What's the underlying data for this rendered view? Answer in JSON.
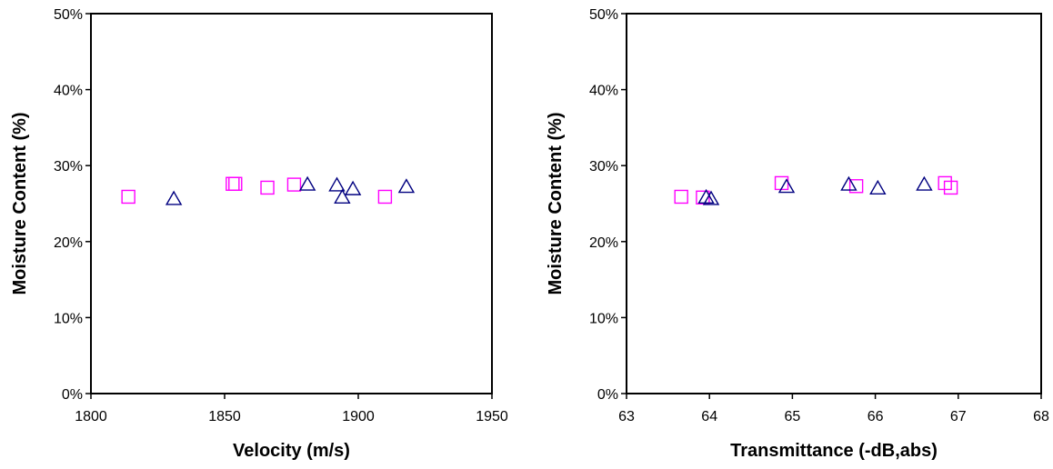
{
  "chart_data": [
    {
      "type": "scatter",
      "title": "",
      "xlabel": "Velocity (m/s)",
      "ylabel": "Moisture Content (%)",
      "xlim": [
        1800,
        1950
      ],
      "ylim": [
        0,
        0.5
      ],
      "x_ticks": [
        "1800",
        "1850",
        "1900",
        "1950"
      ],
      "x_tick_values": [
        1800,
        1850,
        1900,
        1950
      ],
      "y_ticks": [
        "0%",
        "10%",
        "20%",
        "30%",
        "40%",
        "50%"
      ],
      "y_tick_values": [
        0,
        0.1,
        0.2,
        0.3,
        0.4,
        0.5
      ],
      "grid": false,
      "legend": "none",
      "series": [
        {
          "marker": "square",
          "color": "#ff00ff",
          "points": [
            {
              "x": 1814,
              "y": 0.259
            },
            {
              "x": 1853,
              "y": 0.276
            },
            {
              "x": 1854,
              "y": 0.276
            },
            {
              "x": 1866,
              "y": 0.271
            },
            {
              "x": 1876,
              "y": 0.275
            },
            {
              "x": 1910,
              "y": 0.259
            }
          ]
        },
        {
          "marker": "triangle",
          "color": "#000080",
          "points": [
            {
              "x": 1831,
              "y": 0.256
            },
            {
              "x": 1881,
              "y": 0.275
            },
            {
              "x": 1892,
              "y": 0.274
            },
            {
              "x": 1894,
              "y": 0.258
            },
            {
              "x": 1898,
              "y": 0.269
            },
            {
              "x": 1918,
              "y": 0.272
            }
          ]
        }
      ]
    },
    {
      "type": "scatter",
      "title": "",
      "xlabel": "Transmittance (-dB,abs)",
      "ylabel": "Moisture Content (%)",
      "xlim": [
        63,
        68
      ],
      "ylim": [
        0,
        0.5
      ],
      "x_ticks": [
        "63",
        "64",
        "65",
        "66",
        "67",
        "68"
      ],
      "x_tick_values": [
        63,
        64,
        65,
        66,
        67,
        68
      ],
      "y_ticks": [
        "0%",
        "10%",
        "20%",
        "30%",
        "40%",
        "50%"
      ],
      "y_tick_values": [
        0,
        0.1,
        0.2,
        0.3,
        0.4,
        0.5
      ],
      "grid": false,
      "legend": "none",
      "series": [
        {
          "marker": "square",
          "color": "#ff00ff",
          "points": [
            {
              "x": 63.66,
              "y": 0.259
            },
            {
              "x": 63.92,
              "y": 0.258
            },
            {
              "x": 64.87,
              "y": 0.277
            },
            {
              "x": 65.77,
              "y": 0.273
            },
            {
              "x": 66.84,
              "y": 0.277
            },
            {
              "x": 66.91,
              "y": 0.271
            }
          ]
        },
        {
          "marker": "triangle",
          "color": "#000080",
          "points": [
            {
              "x": 63.96,
              "y": 0.258
            },
            {
              "x": 64.02,
              "y": 0.256
            },
            {
              "x": 64.93,
              "y": 0.272
            },
            {
              "x": 65.68,
              "y": 0.275
            },
            {
              "x": 66.03,
              "y": 0.27
            },
            {
              "x": 66.59,
              "y": 0.275
            }
          ]
        }
      ]
    }
  ]
}
